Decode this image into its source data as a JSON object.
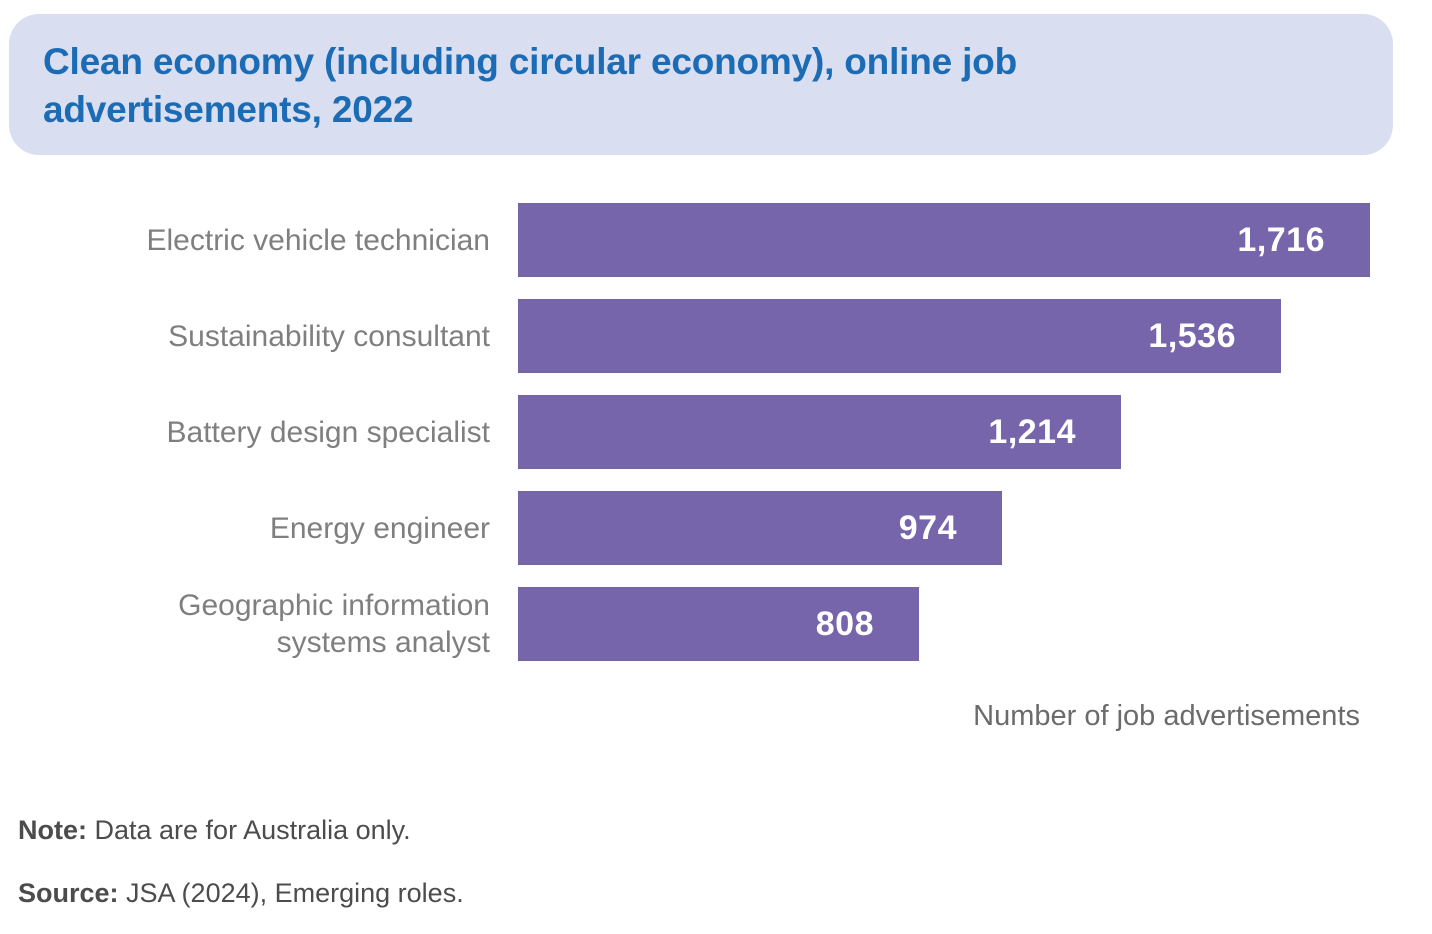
{
  "title": {
    "text": "Clean economy (including circular economy), online job advertisements, 2022"
  },
  "chart_data": {
    "type": "bar",
    "orientation": "horizontal",
    "title": "Clean economy (including circular economy), online job advertisements, 2022",
    "categories": [
      "Electric vehicle technician",
      "Sustainability consultant",
      "Battery design specialist",
      "Energy engineer",
      "Geographic information\nsystems analyst"
    ],
    "values": [
      1716,
      1536,
      1214,
      974,
      808
    ],
    "value_labels": [
      "1,716",
      "1,536",
      "1,214",
      "974",
      "808"
    ],
    "xlabel": "Number of job advertisements",
    "ylabel": "",
    "xlim": [
      0,
      1716
    ],
    "grid": false,
    "legend": "none",
    "value_labels_position": "inside-end"
  },
  "footer": {
    "note_label": "Note:",
    "note_text": " Data are for Australia only.",
    "source_label": "Source:",
    "source_text": " JSA (2024), Emerging roles."
  },
  "colors": {
    "banner_bg": "#D9DEF1",
    "title_text": "#1B6CB4",
    "bar": "#7765AB",
    "bar_value_text": "#FFFFFF",
    "category_label": "#7F7F7F",
    "axis_label": "#6B6B6B",
    "footer_text": "#4C4C4C"
  }
}
